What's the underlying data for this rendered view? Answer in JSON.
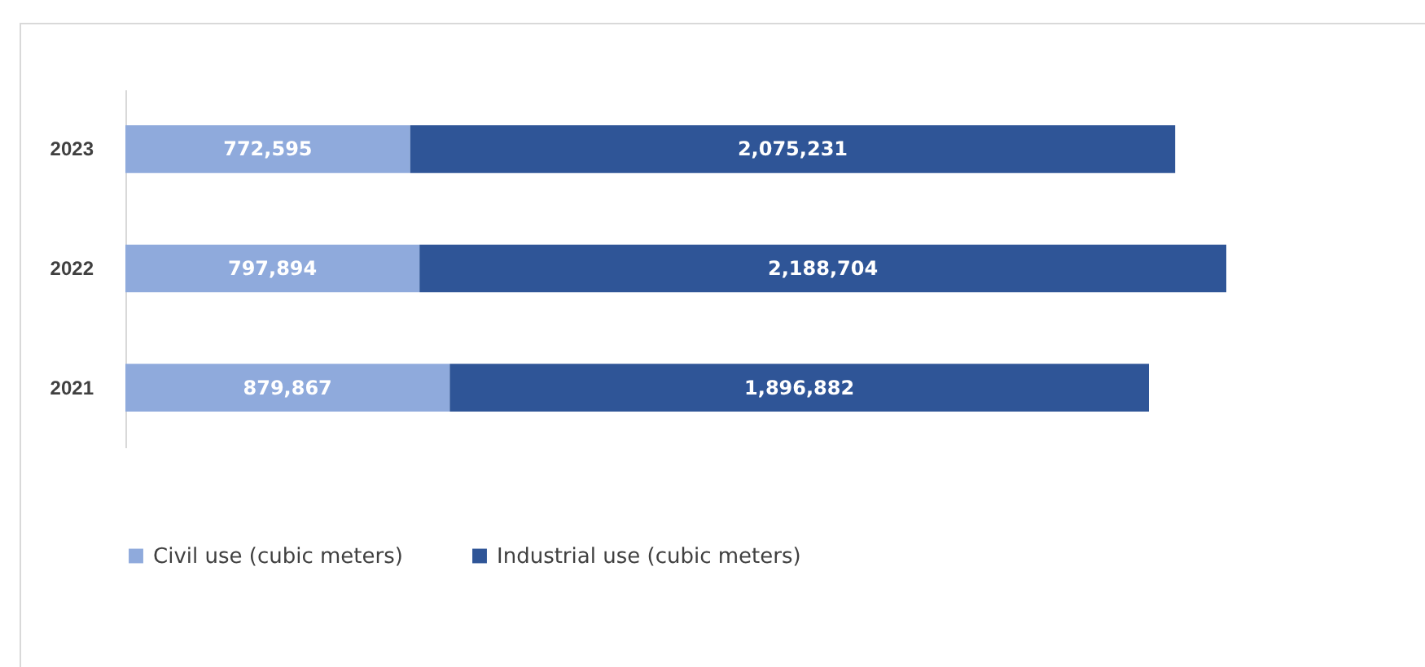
{
  "chart_data": {
    "type": "bar",
    "orientation": "horizontal",
    "stacked": true,
    "categories": [
      "2023",
      "2022",
      "2021"
    ],
    "series": [
      {
        "name": "Civil use (cubic meters)",
        "color": "#8faadc",
        "values": [
          772595,
          797894,
          879867
        ],
        "value_labels": [
          "772,595",
          "797,894",
          "879,867"
        ]
      },
      {
        "name": "Industrial use (cubic meters)",
        "color": "#2f5597",
        "values": [
          2075231,
          2188704,
          1896882
        ],
        "value_labels": [
          "2,075,231",
          "2,188,704",
          "1,896,882"
        ]
      }
    ],
    "legend": "bottom",
    "grid": false
  }
}
